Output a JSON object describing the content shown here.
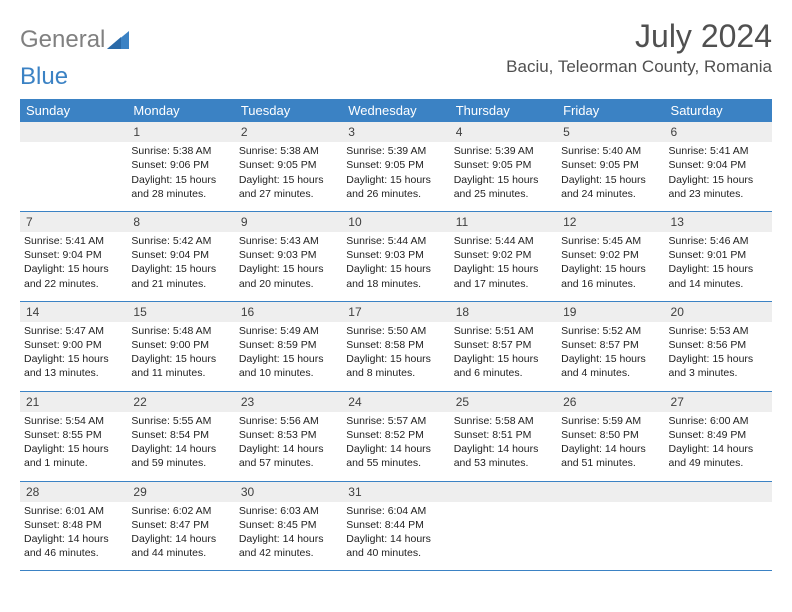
{
  "logo": {
    "text1": "General",
    "text2": "Blue"
  },
  "title": "July 2024",
  "location": "Baciu, Teleorman County, Romania",
  "colors": {
    "header_bg": "#3b82c4",
    "header_fg": "#ffffff",
    "daynum_bg": "#eeeeee",
    "text": "#222222",
    "rule": "#3b82c4"
  },
  "weekdays": [
    "Sunday",
    "Monday",
    "Tuesday",
    "Wednesday",
    "Thursday",
    "Friday",
    "Saturday"
  ],
  "weeks": [
    [
      null,
      {
        "n": "1",
        "sr": "5:38 AM",
        "ss": "9:06 PM",
        "dl": "15 hours and 28 minutes."
      },
      {
        "n": "2",
        "sr": "5:38 AM",
        "ss": "9:05 PM",
        "dl": "15 hours and 27 minutes."
      },
      {
        "n": "3",
        "sr": "5:39 AM",
        "ss": "9:05 PM",
        "dl": "15 hours and 26 minutes."
      },
      {
        "n": "4",
        "sr": "5:39 AM",
        "ss": "9:05 PM",
        "dl": "15 hours and 25 minutes."
      },
      {
        "n": "5",
        "sr": "5:40 AM",
        "ss": "9:05 PM",
        "dl": "15 hours and 24 minutes."
      },
      {
        "n": "6",
        "sr": "5:41 AM",
        "ss": "9:04 PM",
        "dl": "15 hours and 23 minutes."
      }
    ],
    [
      {
        "n": "7",
        "sr": "5:41 AM",
        "ss": "9:04 PM",
        "dl": "15 hours and 22 minutes."
      },
      {
        "n": "8",
        "sr": "5:42 AM",
        "ss": "9:04 PM",
        "dl": "15 hours and 21 minutes."
      },
      {
        "n": "9",
        "sr": "5:43 AM",
        "ss": "9:03 PM",
        "dl": "15 hours and 20 minutes."
      },
      {
        "n": "10",
        "sr": "5:44 AM",
        "ss": "9:03 PM",
        "dl": "15 hours and 18 minutes."
      },
      {
        "n": "11",
        "sr": "5:44 AM",
        "ss": "9:02 PM",
        "dl": "15 hours and 17 minutes."
      },
      {
        "n": "12",
        "sr": "5:45 AM",
        "ss": "9:02 PM",
        "dl": "15 hours and 16 minutes."
      },
      {
        "n": "13",
        "sr": "5:46 AM",
        "ss": "9:01 PM",
        "dl": "15 hours and 14 minutes."
      }
    ],
    [
      {
        "n": "14",
        "sr": "5:47 AM",
        "ss": "9:00 PM",
        "dl": "15 hours and 13 minutes."
      },
      {
        "n": "15",
        "sr": "5:48 AM",
        "ss": "9:00 PM",
        "dl": "15 hours and 11 minutes."
      },
      {
        "n": "16",
        "sr": "5:49 AM",
        "ss": "8:59 PM",
        "dl": "15 hours and 10 minutes."
      },
      {
        "n": "17",
        "sr": "5:50 AM",
        "ss": "8:58 PM",
        "dl": "15 hours and 8 minutes."
      },
      {
        "n": "18",
        "sr": "5:51 AM",
        "ss": "8:57 PM",
        "dl": "15 hours and 6 minutes."
      },
      {
        "n": "19",
        "sr": "5:52 AM",
        "ss": "8:57 PM",
        "dl": "15 hours and 4 minutes."
      },
      {
        "n": "20",
        "sr": "5:53 AM",
        "ss": "8:56 PM",
        "dl": "15 hours and 3 minutes."
      }
    ],
    [
      {
        "n": "21",
        "sr": "5:54 AM",
        "ss": "8:55 PM",
        "dl": "15 hours and 1 minute."
      },
      {
        "n": "22",
        "sr": "5:55 AM",
        "ss": "8:54 PM",
        "dl": "14 hours and 59 minutes."
      },
      {
        "n": "23",
        "sr": "5:56 AM",
        "ss": "8:53 PM",
        "dl": "14 hours and 57 minutes."
      },
      {
        "n": "24",
        "sr": "5:57 AM",
        "ss": "8:52 PM",
        "dl": "14 hours and 55 minutes."
      },
      {
        "n": "25",
        "sr": "5:58 AM",
        "ss": "8:51 PM",
        "dl": "14 hours and 53 minutes."
      },
      {
        "n": "26",
        "sr": "5:59 AM",
        "ss": "8:50 PM",
        "dl": "14 hours and 51 minutes."
      },
      {
        "n": "27",
        "sr": "6:00 AM",
        "ss": "8:49 PM",
        "dl": "14 hours and 49 minutes."
      }
    ],
    [
      {
        "n": "28",
        "sr": "6:01 AM",
        "ss": "8:48 PM",
        "dl": "14 hours and 46 minutes."
      },
      {
        "n": "29",
        "sr": "6:02 AM",
        "ss": "8:47 PM",
        "dl": "14 hours and 44 minutes."
      },
      {
        "n": "30",
        "sr": "6:03 AM",
        "ss": "8:45 PM",
        "dl": "14 hours and 42 minutes."
      },
      {
        "n": "31",
        "sr": "6:04 AM",
        "ss": "8:44 PM",
        "dl": "14 hours and 40 minutes."
      },
      null,
      null,
      null
    ]
  ],
  "labels": {
    "sunrise": "Sunrise:",
    "sunset": "Sunset:",
    "daylight": "Daylight:"
  }
}
